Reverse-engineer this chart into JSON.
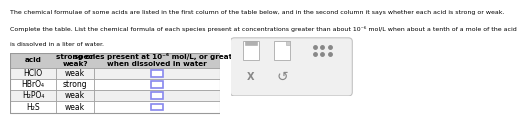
{
  "title_line1": "The chemical formulae of some acids are listed in the first column of the table below, and in the second column it says whether each acid is strong or weak.",
  "title_line2": "Complete the table. List the chemical formula of each species present at concentrations greater than about 10⁻⁶ mol/L when about a tenth of a mole of the acid",
  "title_line3": "is dissolved in a liter of water.",
  "col1_header": "acid",
  "col2_header": "strong or\nweak?",
  "col3_header": "species present at 10⁻⁶ mol/L, or greater\nwhen dissolved in water",
  "rows": [
    {
      "acid": "HClO",
      "strength": "weak"
    },
    {
      "acid": "HBrO₄",
      "strength": "strong"
    },
    {
      "acid": "H₂PO₄",
      "strength": "weak"
    },
    {
      "acid": "H₂S",
      "strength": "weak"
    }
  ],
  "header_bg": "#c8c8c8",
  "row_bg_odd": "#f0f0f0",
  "row_bg_even": "#ffffff",
  "border_color": "#999999",
  "text_color": "#000000",
  "input_box_color": "#8888ee",
  "title_fontsize": 4.5,
  "cell_fontsize": 5.5,
  "header_fontsize": 5.2,
  "icon_panel_bg": "#f0f0f0",
  "icon_panel_border": "#bbbbbb"
}
